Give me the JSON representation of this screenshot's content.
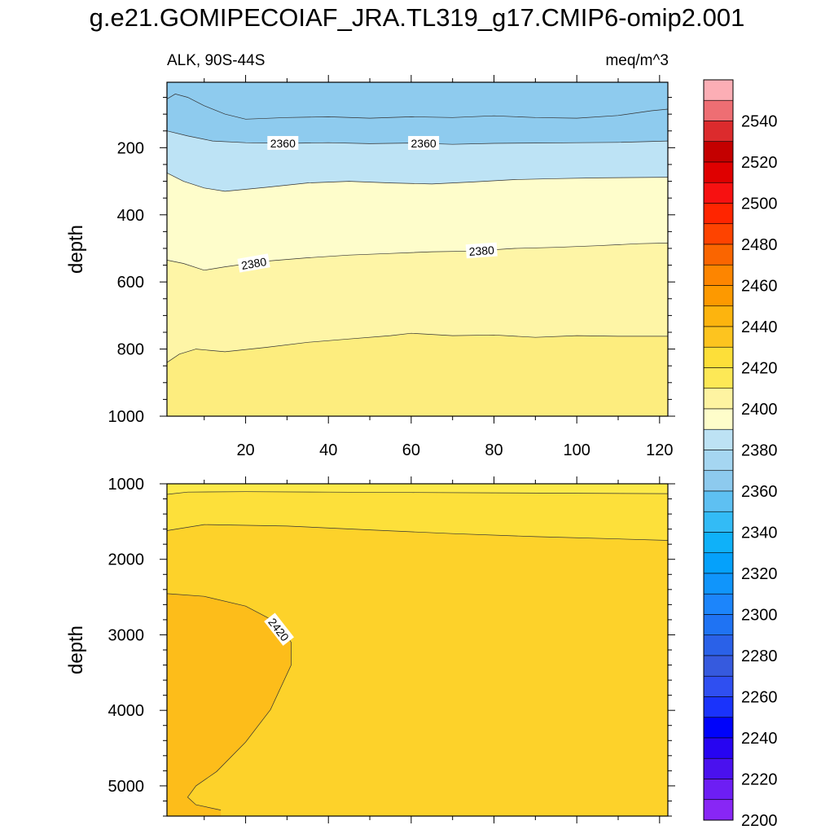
{
  "figure": {
    "title": "g.e21.GOMIPECOIAF_JRA.TL319_g17.CMIP6-omip2.001",
    "left_subtitle": "ALK, 90S-44S",
    "right_subtitle": "meq/m^3"
  },
  "chart_data": [
    {
      "type": "heatmap",
      "panel": "upper",
      "ylabel": "depth",
      "xlabel": "",
      "xlim": [
        1,
        122
      ],
      "ylim": [
        1000,
        5
      ],
      "yticks": [
        200,
        400,
        600,
        800,
        1000
      ],
      "xticks": [
        20,
        40,
        60,
        80,
        100,
        120
      ],
      "contours": [
        {
          "level": 2350,
          "color": "#8ecbee",
          "points": [
            [
              1,
              55
            ],
            [
              3,
              40
            ],
            [
              6,
              50
            ],
            [
              10,
              75
            ],
            [
              15,
              100
            ],
            [
              20,
              115
            ],
            [
              30,
              110
            ],
            [
              40,
              108
            ],
            [
              50,
              112
            ],
            [
              60,
              108
            ],
            [
              70,
              110
            ],
            [
              80,
              105
            ],
            [
              90,
              110
            ],
            [
              100,
              112
            ],
            [
              110,
              104
            ],
            [
              118,
              90
            ],
            [
              122,
              85
            ]
          ]
        },
        {
          "level": 2360,
          "color": "#bde3f5",
          "labels": [
            [
              29,
              187
            ],
            [
              63,
              187
            ]
          ],
          "points": [
            [
              1,
              150
            ],
            [
              6,
              165
            ],
            [
              12,
              180
            ],
            [
              20,
              185
            ],
            [
              30,
              187
            ],
            [
              40,
              185
            ],
            [
              50,
              188
            ],
            [
              60,
              186
            ],
            [
              70,
              190
            ],
            [
              80,
              187
            ],
            [
              90,
              186
            ],
            [
              100,
              185
            ],
            [
              110,
              184
            ],
            [
              122,
              180
            ]
          ]
        },
        {
          "level": 2370,
          "color": "#fefdcb",
          "points": [
            [
              1,
              275
            ],
            [
              5,
              300
            ],
            [
              10,
              320
            ],
            [
              15,
              330
            ],
            [
              25,
              318
            ],
            [
              35,
              305
            ],
            [
              45,
              300
            ],
            [
              55,
              305
            ],
            [
              65,
              308
            ],
            [
              75,
              302
            ],
            [
              85,
              295
            ],
            [
              95,
              292
            ],
            [
              105,
              290
            ],
            [
              122,
              288
            ]
          ]
        },
        {
          "level": 2380,
          "color": "#fef5a6",
          "labels": [
            [
              22,
              545
            ],
            [
              77,
              507
            ]
          ],
          "points": [
            [
              1,
              535
            ],
            [
              5,
              545
            ],
            [
              10,
              565
            ],
            [
              15,
              555
            ],
            [
              25,
              538
            ],
            [
              35,
              528
            ],
            [
              45,
              520
            ],
            [
              55,
              515
            ],
            [
              65,
              510
            ],
            [
              75,
              508
            ],
            [
              85,
              500
            ],
            [
              95,
              497
            ],
            [
              105,
              492
            ],
            [
              115,
              486
            ],
            [
              122,
              484
            ]
          ]
        },
        {
          "level": 2390,
          "color": "#fded7e",
          "points": [
            [
              1,
              840
            ],
            [
              4,
              815
            ],
            [
              8,
              800
            ],
            [
              15,
              808
            ],
            [
              25,
              795
            ],
            [
              35,
              780
            ],
            [
              45,
              770
            ],
            [
              55,
              760
            ],
            [
              60,
              753
            ],
            [
              70,
              760
            ],
            [
              80,
              758
            ],
            [
              90,
              765
            ],
            [
              100,
              760
            ],
            [
              110,
              762
            ],
            [
              122,
              762
            ]
          ]
        }
      ]
    },
    {
      "type": "heatmap",
      "panel": "lower",
      "ylabel": "depth",
      "xlabel": "",
      "xlim": [
        1,
        122
      ],
      "ylim": [
        5400,
        1000
      ],
      "yticks": [
        1000,
        2000,
        3000,
        4000,
        5000
      ],
      "contours": [
        {
          "level": 2400,
          "color": "#fde03a",
          "points": [
            [
              1,
              1140
            ],
            [
              6,
              1110
            ],
            [
              20,
              1105
            ],
            [
              40,
              1110
            ],
            [
              60,
              1115
            ],
            [
              80,
              1120
            ],
            [
              100,
              1125
            ],
            [
              122,
              1130
            ]
          ]
        },
        {
          "level": 2410,
          "color": "#fdd22a",
          "points": [
            [
              1,
              1620
            ],
            [
              10,
              1540
            ],
            [
              30,
              1560
            ],
            [
              50,
              1610
            ],
            [
              70,
              1660
            ],
            [
              90,
              1700
            ],
            [
              110,
              1730
            ],
            [
              122,
              1750
            ]
          ]
        },
        {
          "level": 2420,
          "color": "#fdbd1a",
          "labels": [
            [
              28,
              2930
            ]
          ],
          "points": [
            [
              1,
              2455
            ],
            [
              10,
              2490
            ],
            [
              20,
              2620
            ],
            [
              28,
              2850
            ],
            [
              31,
              3100
            ],
            [
              31,
              3400
            ],
            [
              26,
              3990
            ],
            [
              20,
              4420
            ],
            [
              13,
              4810
            ],
            [
              8,
              5000
            ],
            [
              6,
              5150
            ],
            [
              8,
              5250
            ],
            [
              14,
              5320
            ]
          ]
        }
      ]
    }
  ],
  "colorbar": {
    "labels": [
      "2540",
      "2520",
      "2500",
      "2480",
      "2460",
      "2440",
      "2420",
      "2400",
      "2380",
      "2360",
      "2340",
      "2320",
      "2300",
      "2280",
      "2260",
      "2240",
      "2220",
      "2200"
    ],
    "colors": [
      "#fcaeb5",
      "#ee6e73",
      "#dc2b2d",
      "#c40000",
      "#df0000",
      "#f71111",
      "#ff2500",
      "#fe4300",
      "#fa6500",
      "#fd8500",
      "#fd9900",
      "#fdb40e",
      "#fdc41f",
      "#fddf39",
      "#fde856",
      "#fef3a1",
      "#fefdca",
      "#bde2f4",
      "#a5d6f1",
      "#8dcaee",
      "#5ec0f2",
      "#33bbf6",
      "#0fb1f9",
      "#05a1fb",
      "#1095fb",
      "#1c85fb",
      "#1f73f3",
      "#2a61e8",
      "#365ade",
      "#2f4ff1",
      "#1a33fb",
      "#0003fa",
      "#2704f1",
      "#4a11ee",
      "#6d1ef4",
      "#8826f5"
    ]
  }
}
